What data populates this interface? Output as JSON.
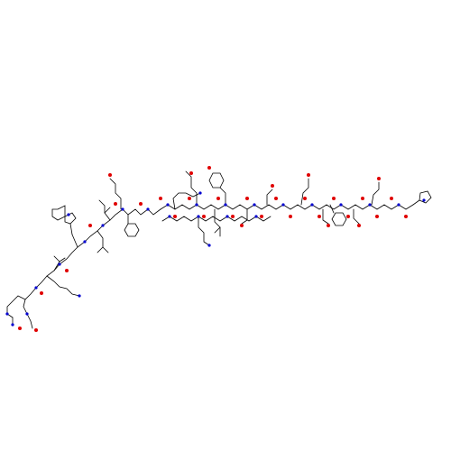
{
  "diagram": {
    "kind": "skeletal-structure",
    "background": "#ffffff",
    "colors": {
      "bond": "#000000",
      "O": "#e00000",
      "N": "#0000d0",
      "H": "#0000d0"
    }
  }
}
